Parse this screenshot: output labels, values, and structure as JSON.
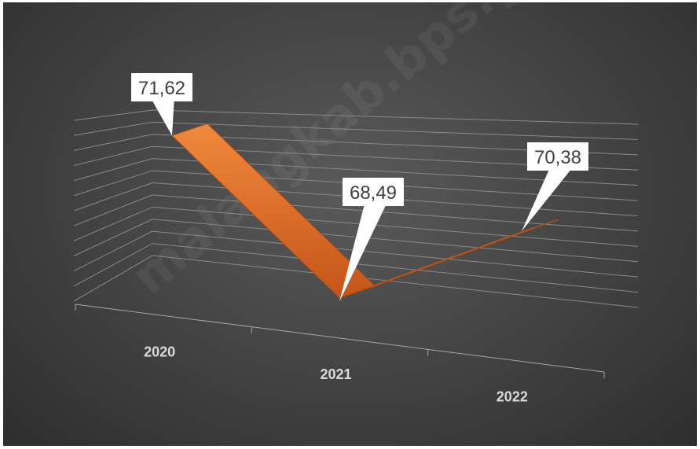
{
  "chart_data": {
    "type": "line",
    "style": "3d-ribbon",
    "categories": [
      "2020",
      "2021",
      "2022"
    ],
    "series": [
      {
        "values": [
          71.62,
          68.49,
          70.38
        ],
        "color": "#d9661f"
      }
    ],
    "data_labels": [
      "71,62",
      "68,49",
      "70,38"
    ],
    "ylim": [
      67.5,
      72.5
    ],
    "grid": true,
    "legend": "none",
    "background": "#3d3d3d"
  },
  "watermark": "malangkab.bps.go.id"
}
